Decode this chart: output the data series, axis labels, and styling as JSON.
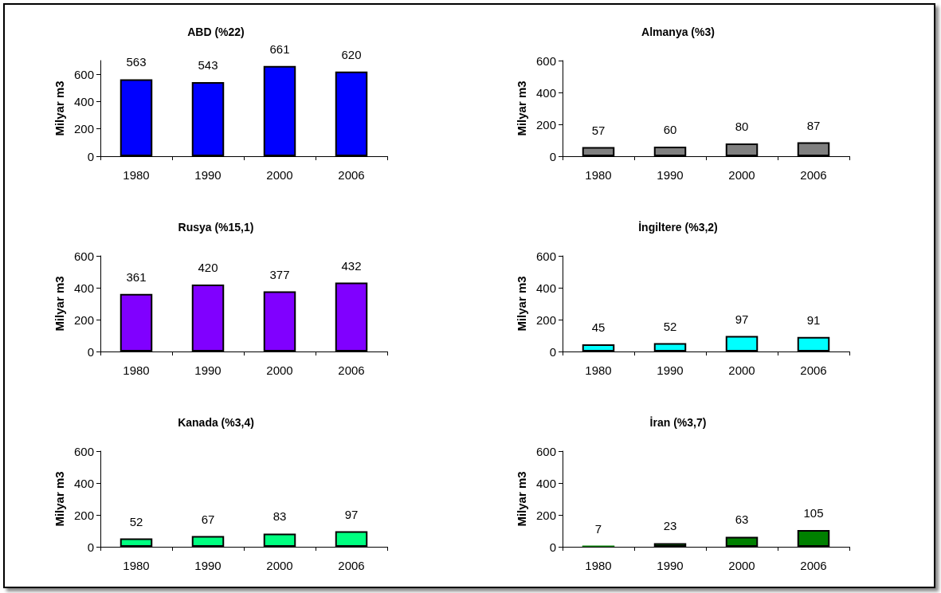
{
  "chart_data": [
    {
      "type": "bar",
      "title": "ABD (%22)",
      "ylabel": "Milyar m3",
      "categories": [
        "1980",
        "1990",
        "2000",
        "2006"
      ],
      "values": [
        563,
        543,
        661,
        620
      ],
      "color": "#0000ff",
      "ylim": [
        0,
        700
      ],
      "yticks": [
        0,
        200,
        400,
        600
      ],
      "data_labels": true,
      "grid": false
    },
    {
      "type": "bar",
      "title": "Almanya (%3)",
      "ylabel": "Milyar m3",
      "categories": [
        "1980",
        "1990",
        "2000",
        "2006"
      ],
      "values": [
        57,
        60,
        80,
        87
      ],
      "color": "#808080",
      "ylim": [
        0,
        600
      ],
      "yticks": [
        0,
        200,
        400,
        600
      ],
      "data_labels": true,
      "grid": false
    },
    {
      "type": "bar",
      "title": "Rusya (%15,1)",
      "ylabel": "Milyar m3",
      "categories": [
        "1980",
        "1990",
        "2000",
        "2006"
      ],
      "values": [
        361,
        420,
        377,
        432
      ],
      "color": "#8000ff",
      "ylim": [
        0,
        600
      ],
      "yticks": [
        0,
        200,
        400,
        600
      ],
      "data_labels": true,
      "grid": false
    },
    {
      "type": "bar",
      "title": "İngiltere (%3,2)",
      "ylabel": "Milyar m3",
      "categories": [
        "1980",
        "1990",
        "2000",
        "2006"
      ],
      "values": [
        45,
        52,
        97,
        91
      ],
      "color": "#00ffff",
      "ylim": [
        0,
        600
      ],
      "yticks": [
        0,
        200,
        400,
        600
      ],
      "data_labels": true,
      "grid": false
    },
    {
      "type": "bar",
      "title": "Kanada (%3,4)",
      "ylabel": "Milyar m3",
      "categories": [
        "1980",
        "1990",
        "2000",
        "2006"
      ],
      "values": [
        52,
        67,
        83,
        97
      ],
      "color": "#00ff80",
      "ylim": [
        0,
        600
      ],
      "yticks": [
        0,
        200,
        400,
        600
      ],
      "data_labels": true,
      "grid": false
    },
    {
      "type": "bar",
      "title": "İran (%3,7)",
      "ylabel": "Milyar m3",
      "categories": [
        "1980",
        "1990",
        "2000",
        "2006"
      ],
      "values": [
        7,
        23,
        63,
        105
      ],
      "color": "#008000",
      "ylim": [
        0,
        600
      ],
      "yticks": [
        0,
        200,
        400,
        600
      ],
      "data_labels": true,
      "grid": false
    }
  ]
}
